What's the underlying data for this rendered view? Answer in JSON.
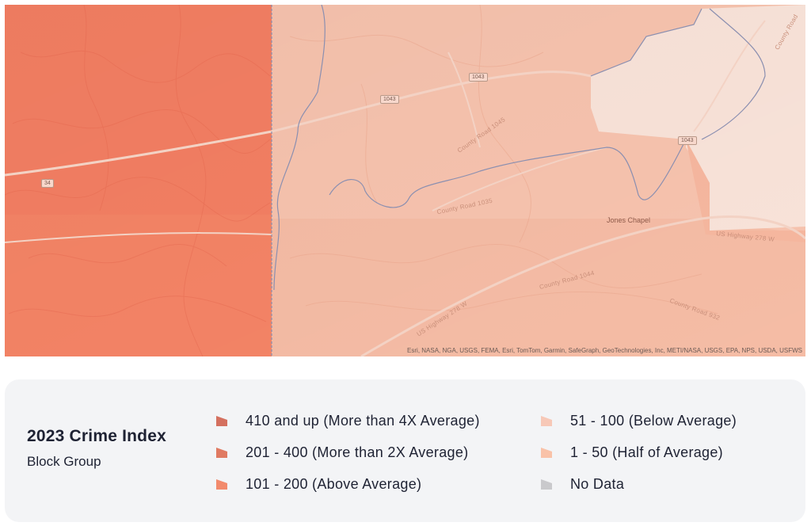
{
  "map": {
    "road_labels": [
      {
        "name": "road-label-county-road-1045",
        "text": "County Road 1045"
      },
      {
        "name": "road-label-county-road-1035",
        "text": "County Road 1035"
      },
      {
        "name": "road-label-county-road-1044",
        "text": "County Road 1044"
      },
      {
        "name": "road-label-us-highway-278-w-west",
        "text": "US Highway 278 W"
      },
      {
        "name": "road-label-us-highway-278-w-east",
        "text": "US Highway 278 W"
      },
      {
        "name": "road-label-county-road-932",
        "text": "County Road 932"
      },
      {
        "name": "road-label-county-road-east",
        "text": "County Road"
      }
    ],
    "shields": [
      "1043",
      "1043",
      "34",
      "1043"
    ],
    "place_label": "Jones Chapel",
    "attribution": "Esri, NASA, NGA, USGS, FEMA, Esri, TomTom, Garmin, SafeGraph, GeoTechnologies, Inc, METI/NASA, USGS, EPA, NPS, USDA, USFWS",
    "colors": {
      "above_average": "#f47f63",
      "below_average": "#f7c3ae",
      "half_of_average": "#f9e1d7",
      "boundary": "#8b8fb0"
    }
  },
  "legend": {
    "title": "2023 Crime Index",
    "subtitle": "Block Group",
    "items": [
      {
        "label": "410 and up (More than 4X Average)",
        "color": "#d4705f"
      },
      {
        "label": "201 - 400 (More than 2X Average)",
        "color": "#e07a62"
      },
      {
        "label": "101 - 200 (Above Average)",
        "color": "#f28a6c"
      },
      {
        "label": "51 - 100 (Below Average)",
        "color": "#f7c8b7"
      },
      {
        "label": "1 - 50 (Half of Average)",
        "color": "#f9c2a8"
      },
      {
        "label": "No Data",
        "color": "#c9c9cc"
      }
    ]
  }
}
